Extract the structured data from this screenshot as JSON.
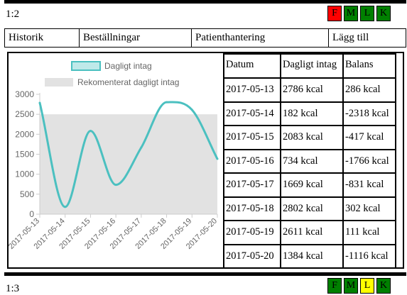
{
  "patient_a": {
    "id_label": "1:2",
    "status": [
      {
        "label": "F",
        "color": "#ff0000"
      },
      {
        "label": "M",
        "color": "#008000"
      },
      {
        "label": "L",
        "color": "#008000"
      },
      {
        "label": "K",
        "color": "#008000"
      }
    ]
  },
  "nav": {
    "items": [
      {
        "label": "Historik"
      },
      {
        "label": "Beställningar"
      },
      {
        "label": "Patienthantering"
      },
      {
        "label": "Lägg till"
      }
    ]
  },
  "table": {
    "headers": [
      "Datum",
      "Dagligt intag",
      "Balans"
    ],
    "rows": [
      [
        "2017-05-13",
        "2786 kcal",
        "286 kcal"
      ],
      [
        "2017-05-14",
        "182 kcal",
        "-2318 kcal"
      ],
      [
        "2017-05-15",
        "2083 kcal",
        "-417 kcal"
      ],
      [
        "2017-05-16",
        "734 kcal",
        "-1766 kcal"
      ],
      [
        "2017-05-17",
        "1669 kcal",
        "-831 kcal"
      ],
      [
        "2017-05-18",
        "2802 kcal",
        "302 kcal"
      ],
      [
        "2017-05-19",
        "2611 kcal",
        "111 kcal"
      ],
      [
        "2017-05-20",
        "1384 kcal",
        "-1116 kcal"
      ]
    ]
  },
  "chart_data": {
    "type": "line",
    "x": [
      "2017-05-13",
      "2017-05-14",
      "2017-05-15",
      "2017-05-16",
      "2017-05-17",
      "2017-05-18",
      "2017-05-19",
      "2017-05-20"
    ],
    "series": [
      {
        "name": "Dagligt intag",
        "values": [
          2786,
          182,
          2083,
          734,
          1669,
          2802,
          2611,
          1384
        ],
        "color": "#4bc0c0"
      },
      {
        "name": "Rekomenterat dagligt intag",
        "values": [
          2500,
          2500,
          2500,
          2500,
          2500,
          2500,
          2500,
          2500
        ],
        "color": "#e2e2e2",
        "fill": true
      }
    ],
    "yticks": [
      0,
      500,
      1000,
      1500,
      2000,
      2500,
      3000
    ],
    "ylim": [
      0,
      3000
    ],
    "legend": "top",
    "grid": false
  },
  "patient_b": {
    "id_label": "1:3",
    "status": [
      {
        "label": "F",
        "color": "#008000"
      },
      {
        "label": "M",
        "color": "#008000"
      },
      {
        "label": "L",
        "color": "#ffff00"
      },
      {
        "label": "K",
        "color": "#008000"
      }
    ]
  }
}
